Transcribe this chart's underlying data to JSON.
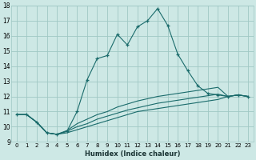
{
  "xlabel": "Humidex (Indice chaleur)",
  "ylabel": "",
  "xlim": [
    -0.5,
    23.5
  ],
  "ylim": [
    9,
    18
  ],
  "xticks": [
    0,
    1,
    2,
    3,
    4,
    5,
    6,
    7,
    8,
    9,
    10,
    11,
    12,
    13,
    14,
    15,
    16,
    17,
    18,
    19,
    20,
    21,
    22,
    23
  ],
  "yticks": [
    9,
    10,
    11,
    12,
    13,
    14,
    15,
    16,
    17,
    18
  ],
  "background_color": "#cde8e5",
  "grid_color": "#a0c8c4",
  "line_color": "#1a6b6b",
  "lines": [
    {
      "x": [
        0,
        1,
        2,
        3,
        4,
        5,
        6,
        7,
        8,
        9,
        10,
        11,
        12,
        13,
        14,
        15,
        16,
        17,
        18,
        19,
        20,
        21,
        22,
        23
      ],
      "y": [
        10.8,
        10.8,
        10.3,
        9.6,
        9.5,
        9.7,
        11.0,
        13.1,
        14.5,
        14.7,
        16.1,
        15.4,
        16.6,
        17.0,
        17.8,
        16.7,
        14.8,
        13.7,
        12.7,
        12.2,
        12.1,
        12.0,
        12.1,
        12.0
      ],
      "markers": true
    },
    {
      "x": [
        0,
        1,
        2,
        3,
        4,
        5,
        6,
        7,
        8,
        9,
        10,
        11,
        12,
        13,
        14,
        15,
        16,
        17,
        18,
        19,
        20,
        21,
        22,
        23
      ],
      "y": [
        10.8,
        10.8,
        10.3,
        9.6,
        9.5,
        9.75,
        10.2,
        10.5,
        10.8,
        11.0,
        11.3,
        11.5,
        11.7,
        11.85,
        12.0,
        12.1,
        12.2,
        12.3,
        12.4,
        12.5,
        12.6,
        12.0,
        12.1,
        12.0
      ],
      "markers": false
    },
    {
      "x": [
        0,
        1,
        2,
        3,
        4,
        5,
        6,
        7,
        8,
        9,
        10,
        11,
        12,
        13,
        14,
        15,
        16,
        17,
        18,
        19,
        20,
        21,
        22,
        23
      ],
      "y": [
        10.8,
        10.8,
        10.3,
        9.6,
        9.5,
        9.7,
        10.0,
        10.2,
        10.5,
        10.7,
        10.9,
        11.1,
        11.25,
        11.4,
        11.55,
        11.65,
        11.75,
        11.85,
        11.95,
        12.05,
        12.15,
        12.0,
        12.1,
        12.0
      ],
      "markers": false
    },
    {
      "x": [
        0,
        1,
        2,
        3,
        4,
        5,
        6,
        7,
        8,
        9,
        10,
        11,
        12,
        13,
        14,
        15,
        16,
        17,
        18,
        19,
        20,
        21,
        22,
        23
      ],
      "y": [
        10.8,
        10.8,
        10.3,
        9.6,
        9.5,
        9.6,
        9.8,
        10.0,
        10.2,
        10.4,
        10.6,
        10.8,
        11.0,
        11.1,
        11.2,
        11.3,
        11.4,
        11.5,
        11.6,
        11.7,
        11.8,
        12.0,
        12.1,
        12.0
      ],
      "markers": false
    }
  ]
}
